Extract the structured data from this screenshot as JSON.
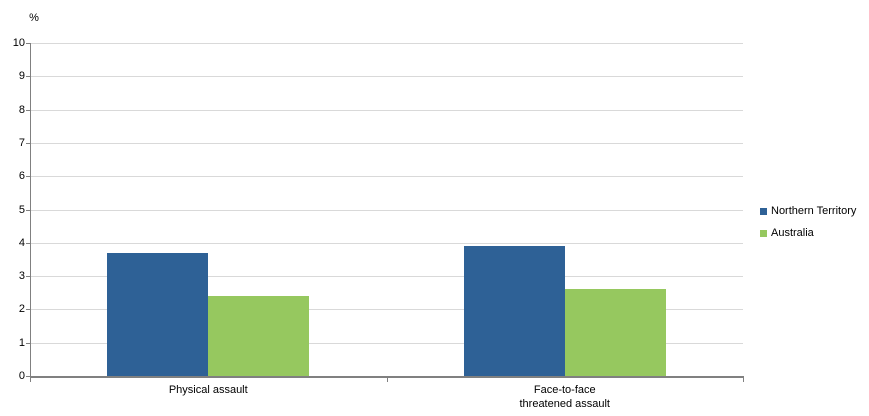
{
  "chart_data": {
    "type": "bar",
    "title": "",
    "unit_label": "%",
    "xlabel": "",
    "ylabel": "%",
    "categories": [
      "Physical assault",
      "Face-to-face\nthreatened assault"
    ],
    "series": [
      {
        "name": "Northern Territory",
        "color": "#2E6196",
        "values": [
          3.7,
          3.9
        ]
      },
      {
        "name": "Australia",
        "color": "#96C85F",
        "values": [
          2.4,
          2.6
        ]
      }
    ],
    "ylim": [
      0,
      10
    ],
    "ytick_step": 1,
    "grid": true,
    "legend_position": "right"
  },
  "colors": {
    "gridline": "#D9D9D9",
    "axis": "#808080",
    "text": "#000000",
    "background": "#FFFFFF"
  }
}
